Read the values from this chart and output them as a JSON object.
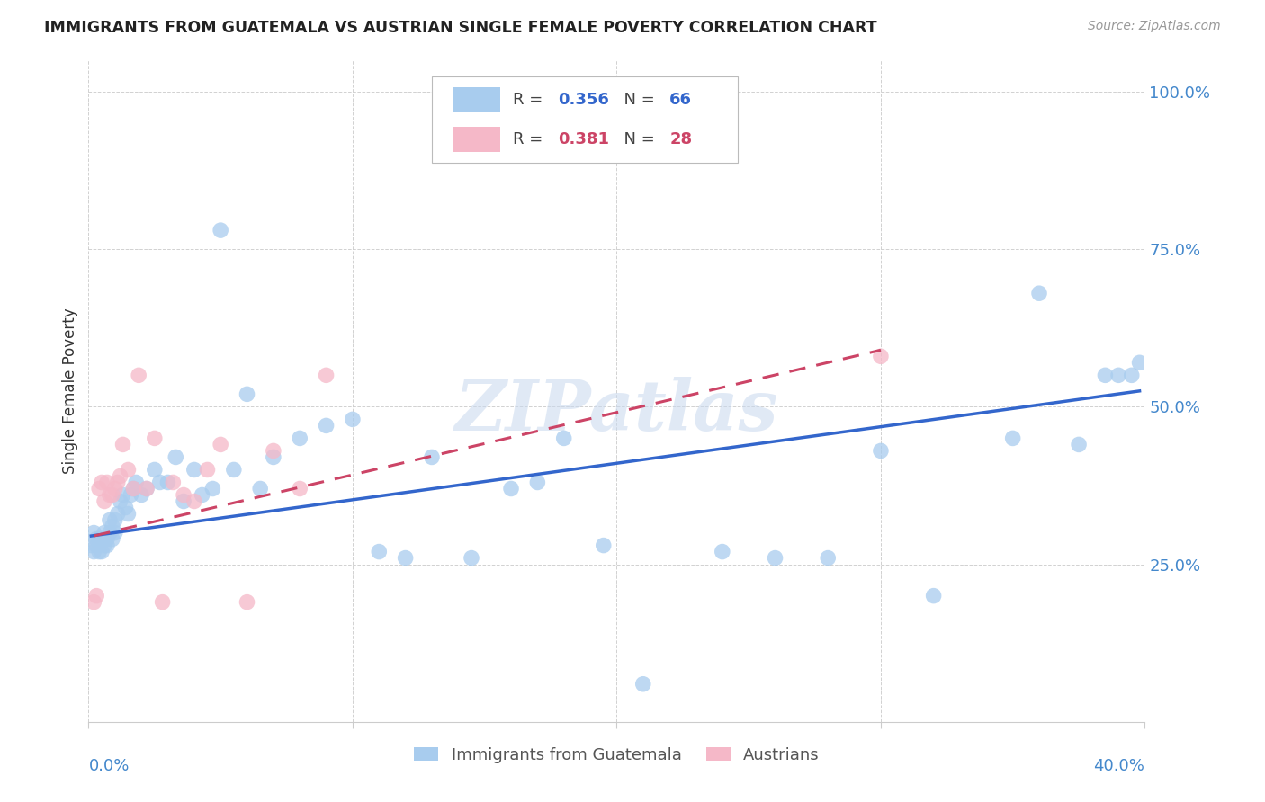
{
  "title": "IMMIGRANTS FROM GUATEMALA VS AUSTRIAN SINGLE FEMALE POVERTY CORRELATION CHART",
  "source": "Source: ZipAtlas.com",
  "ylabel": "Single Female Poverty",
  "yticks": [
    0.0,
    0.25,
    0.5,
    0.75,
    1.0
  ],
  "ytick_labels": [
    "",
    "25.0%",
    "50.0%",
    "75.0%",
    "100.0%"
  ],
  "xlim": [
    0.0,
    0.4
  ],
  "ylim": [
    0.0,
    1.05
  ],
  "blue_R": "0.356",
  "blue_N": "66",
  "pink_R": "0.381",
  "pink_N": "28",
  "blue_color": "#a8ccee",
  "pink_color": "#f5b8c8",
  "blue_line_color": "#3366cc",
  "pink_line_color": "#cc4466",
  "watermark": "ZIPatlas",
  "legend_label_blue": "Immigrants from Guatemala",
  "legend_label_pink": "Austrians",
  "blue_x": [
    0.001,
    0.002,
    0.002,
    0.003,
    0.003,
    0.004,
    0.004,
    0.005,
    0.005,
    0.006,
    0.006,
    0.007,
    0.007,
    0.008,
    0.008,
    0.009,
    0.009,
    0.01,
    0.01,
    0.011,
    0.012,
    0.013,
    0.014,
    0.015,
    0.016,
    0.017,
    0.018,
    0.02,
    0.022,
    0.025,
    0.027,
    0.03,
    0.033,
    0.036,
    0.04,
    0.043,
    0.047,
    0.05,
    0.055,
    0.06,
    0.065,
    0.07,
    0.08,
    0.09,
    0.1,
    0.11,
    0.12,
    0.13,
    0.145,
    0.16,
    0.17,
    0.18,
    0.195,
    0.21,
    0.24,
    0.26,
    0.28,
    0.3,
    0.32,
    0.35,
    0.36,
    0.375,
    0.385,
    0.39,
    0.395,
    0.398
  ],
  "blue_y": [
    0.28,
    0.27,
    0.3,
    0.28,
    0.29,
    0.27,
    0.29,
    0.27,
    0.29,
    0.28,
    0.3,
    0.29,
    0.28,
    0.3,
    0.32,
    0.29,
    0.31,
    0.3,
    0.32,
    0.33,
    0.35,
    0.36,
    0.34,
    0.33,
    0.36,
    0.37,
    0.38,
    0.36,
    0.37,
    0.4,
    0.38,
    0.38,
    0.42,
    0.35,
    0.4,
    0.36,
    0.37,
    0.78,
    0.4,
    0.52,
    0.37,
    0.42,
    0.45,
    0.47,
    0.48,
    0.27,
    0.26,
    0.42,
    0.26,
    0.37,
    0.38,
    0.45,
    0.28,
    0.06,
    0.27,
    0.26,
    0.26,
    0.43,
    0.2,
    0.45,
    0.68,
    0.44,
    0.55,
    0.55,
    0.55,
    0.57
  ],
  "pink_x": [
    0.002,
    0.003,
    0.004,
    0.005,
    0.006,
    0.007,
    0.008,
    0.009,
    0.01,
    0.011,
    0.012,
    0.013,
    0.015,
    0.017,
    0.019,
    0.022,
    0.025,
    0.028,
    0.032,
    0.036,
    0.04,
    0.045,
    0.05,
    0.06,
    0.07,
    0.08,
    0.09,
    0.3
  ],
  "pink_y": [
    0.19,
    0.2,
    0.37,
    0.38,
    0.35,
    0.38,
    0.36,
    0.36,
    0.37,
    0.38,
    0.39,
    0.44,
    0.4,
    0.37,
    0.55,
    0.37,
    0.45,
    0.19,
    0.38,
    0.36,
    0.35,
    0.4,
    0.44,
    0.19,
    0.43,
    0.37,
    0.55,
    0.58
  ],
  "blue_line_x0": 0.001,
  "blue_line_x1": 0.398,
  "blue_line_y0": 0.295,
  "blue_line_y1": 0.525,
  "pink_line_x0": 0.002,
  "pink_line_x1": 0.3,
  "pink_line_y0": 0.295,
  "pink_line_y1": 0.59
}
